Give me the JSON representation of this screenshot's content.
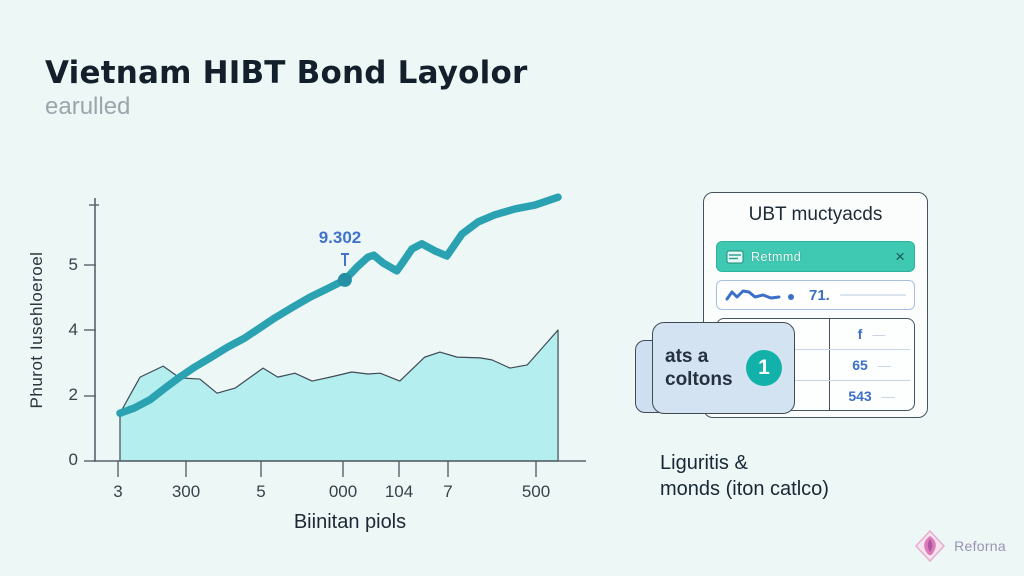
{
  "header": {
    "title": "Vietnam HIBT Bond Layolor",
    "subtitle": "earulled"
  },
  "chart_data": {
    "type": "line",
    "title": "",
    "xlabel": "Biinitan piols",
    "ylabel": "Phurot Iusehloeroel",
    "yticks": [
      "0",
      "2",
      "4",
      "5"
    ],
    "xticks": [
      "3",
      "300",
      "5",
      "000",
      "104",
      "7",
      "500"
    ],
    "ylim": [
      0,
      7
    ],
    "grid": false,
    "legend": false,
    "annotation": {
      "label": "9.302",
      "x": 51.0,
      "value": 4.62
    },
    "series": [
      {
        "name": "bond-yield-line",
        "type": "line",
        "color": "#2aa2b2",
        "points": [
          [
            5.1,
            1.22
          ],
          [
            8,
            1.35
          ],
          [
            11.2,
            1.56
          ],
          [
            14.3,
            1.86
          ],
          [
            17.3,
            2.14
          ],
          [
            20.4,
            2.4
          ],
          [
            23.5,
            2.63
          ],
          [
            27,
            2.9
          ],
          [
            30.6,
            3.14
          ],
          [
            33.7,
            3.4
          ],
          [
            36.7,
            3.65
          ],
          [
            40.3,
            3.92
          ],
          [
            43.9,
            4.18
          ],
          [
            47.5,
            4.4
          ],
          [
            51.0,
            4.62
          ],
          [
            53.5,
            4.95
          ],
          [
            55.7,
            5.2
          ],
          [
            56.9,
            5.25
          ],
          [
            58.8,
            5.05
          ],
          [
            61.6,
            4.85
          ],
          [
            63,
            5.1
          ],
          [
            64.7,
            5.41
          ],
          [
            66.7,
            5.54
          ],
          [
            69.4,
            5.36
          ],
          [
            71.8,
            5.23
          ],
          [
            73.3,
            5.5
          ],
          [
            74.9,
            5.79
          ],
          [
            78.2,
            6.1
          ],
          [
            81.6,
            6.28
          ],
          [
            85.7,
            6.43
          ],
          [
            89.8,
            6.53
          ],
          [
            94.5,
            6.73
          ]
        ]
      },
      {
        "name": "volume-area",
        "type": "area",
        "color": "#b4eeee",
        "points": [
          [
            5.1,
            1.22
          ],
          [
            9.2,
            2.14
          ],
          [
            13.9,
            2.42
          ],
          [
            17.3,
            2.12
          ],
          [
            21.4,
            2.09
          ],
          [
            24.9,
            1.73
          ],
          [
            28.6,
            1.86
          ],
          [
            34.3,
            2.37
          ],
          [
            37.3,
            2.14
          ],
          [
            40.8,
            2.24
          ],
          [
            44.3,
            2.04
          ],
          [
            48.0,
            2.14
          ],
          [
            52.4,
            2.27
          ],
          [
            55.7,
            2.22
          ],
          [
            58.2,
            2.24
          ],
          [
            62.2,
            2.04
          ],
          [
            67.3,
            2.65
          ],
          [
            70.4,
            2.78
          ],
          [
            73.9,
            2.65
          ],
          [
            78.6,
            2.63
          ],
          [
            81.0,
            2.58
          ],
          [
            84.7,
            2.37
          ],
          [
            88.2,
            2.45
          ],
          [
            91.8,
            2.96
          ],
          [
            94.5,
            3.34
          ]
        ]
      }
    ]
  },
  "panel": {
    "card_title": "UBT muctyacds",
    "banner": {
      "label": "Retmmd",
      "close": "×"
    },
    "stat_row": {
      "value": "71."
    },
    "table": {
      "rows": [
        {
          "left": "—",
          "right": "f",
          "dash": "—"
        },
        {
          "left": "—",
          "right": "65",
          "dash": "—"
        },
        {
          "left": "—",
          "right": "543",
          "dash": "—"
        }
      ]
    },
    "overlay": {
      "line1": "ats a",
      "line2": "coltons",
      "badge": "1"
    },
    "caption_line1": "Liguritis &",
    "caption_line2": "monds (iton catlco)"
  },
  "footer": {
    "brand": "Reforna"
  },
  "colors": {
    "background": "#edf7f6",
    "line": "#2aa2b2",
    "area_fill": "#b4eeee",
    "banner_teal": "#3fc9b3",
    "value_blue": "#3b6fc8",
    "badge_teal": "#12b2aa",
    "logo_pink": "#d96fb0"
  }
}
